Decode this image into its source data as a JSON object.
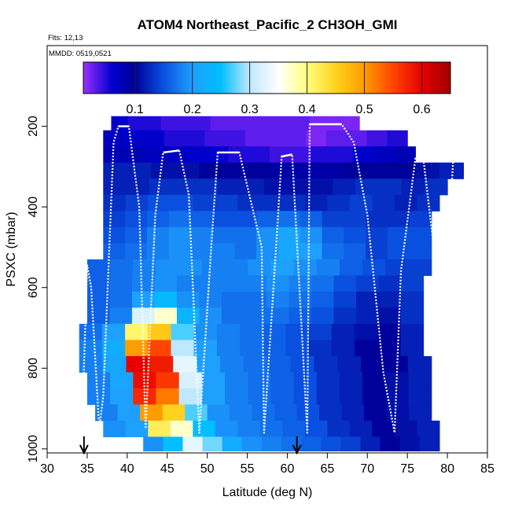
{
  "chart_data": {
    "type": "heatmap",
    "title": "ATOM4 Northeast_Pacific_2 CH3OH_GMI",
    "annotations": {
      "flights": "Flts: 12,13",
      "dates": "MMDD: 0519,0521"
    },
    "xlabel": "Latitude (deg N)",
    "ylabel": "PSXC (mbar)",
    "xlim": [
      30,
      85
    ],
    "ylim": [
      1010,
      0
    ],
    "y_inverted": true,
    "grid": false,
    "xticks": [
      30,
      35,
      40,
      45,
      50,
      55,
      60,
      65,
      70,
      75,
      80,
      85
    ],
    "yticks": [
      200,
      400,
      600,
      800,
      1000
    ],
    "colorbar": {
      "placement": "top-inside",
      "range": [
        0.01,
        0.65
      ],
      "ticks": [
        0.1,
        0.2,
        0.3,
        0.4,
        0.5,
        0.6
      ],
      "stops": [
        [
          0.01,
          "#9b30ff"
        ],
        [
          0.06,
          "#0000cd"
        ],
        [
          0.1,
          "#00009a"
        ],
        [
          0.15,
          "#0a50e0"
        ],
        [
          0.2,
          "#1ea0ff"
        ],
        [
          0.25,
          "#00bfff"
        ],
        [
          0.3,
          "#bfe8ff"
        ],
        [
          0.35,
          "#ffffff"
        ],
        [
          0.4,
          "#ffff80"
        ],
        [
          0.45,
          "#ffd21e"
        ],
        [
          0.5,
          "#ff9c00"
        ],
        [
          0.55,
          "#ff4500"
        ],
        [
          0.6,
          "#e60000"
        ],
        [
          0.65,
          "#a00000"
        ]
      ]
    },
    "pressure_bins": [
      {
        "p0": 175,
        "p1": 210,
        "lat": [
          38,
          69
        ],
        "values": [
          0.06,
          0.05,
          0.05,
          0.04,
          0.04,
          0.04,
          0.03,
          0.03,
          0.03,
          0.03,
          0.03,
          0.03,
          0.02,
          0.02,
          0.02
        ]
      },
      {
        "p0": 210,
        "p1": 250,
        "lat": [
          37,
          75
        ],
        "values": [
          0.07,
          0.06,
          0.06,
          0.05,
          0.05,
          0.04,
          0.04,
          0.03,
          0.03,
          0.03,
          0.02,
          0.03,
          0.03,
          0.04,
          0.05
        ]
      },
      {
        "p0": 250,
        "p1": 290,
        "lat": [
          37,
          76
        ],
        "values": [
          0.08,
          0.08,
          0.07,
          0.07,
          0.06,
          0.06,
          0.05,
          0.05,
          0.04,
          0.04,
          0.05,
          0.05,
          0.06,
          0.07,
          0.08
        ]
      },
      {
        "p0": 290,
        "p1": 330,
        "lat": [
          37,
          82
        ],
        "values": [
          0.12,
          0.12,
          0.11,
          0.11,
          0.1,
          0.1,
          0.1,
          0.09,
          0.09,
          0.09,
          0.1,
          0.1,
          0.1,
          0.11,
          0.12
        ]
      },
      {
        "p0": 330,
        "p1": 370,
        "lat": [
          37,
          80
        ],
        "values": [
          0.12,
          0.12,
          0.13,
          0.13,
          0.13,
          0.12,
          0.12,
          0.11,
          0.11,
          0.11,
          0.12,
          0.13,
          0.13,
          0.12,
          0.13
        ]
      },
      {
        "p0": 370,
        "p1": 410,
        "lat": [
          37,
          79
        ],
        "values": [
          0.13,
          0.14,
          0.15,
          0.15,
          0.14,
          0.14,
          0.13,
          0.13,
          0.13,
          0.12,
          0.13,
          0.14,
          0.13,
          0.12,
          0.13
        ]
      },
      {
        "p0": 410,
        "p1": 450,
        "lat": [
          37,
          78
        ],
        "values": [
          0.14,
          0.15,
          0.16,
          0.17,
          0.16,
          0.15,
          0.15,
          0.16,
          0.17,
          0.16,
          0.14,
          0.14,
          0.13,
          0.13,
          0.14
        ]
      },
      {
        "p0": 450,
        "p1": 490,
        "lat": [
          37,
          78
        ],
        "values": [
          0.15,
          0.16,
          0.18,
          0.19,
          0.18,
          0.17,
          0.17,
          0.19,
          0.21,
          0.19,
          0.16,
          0.15,
          0.14,
          0.15,
          0.15
        ]
      },
      {
        "p0": 490,
        "p1": 530,
        "lat": [
          37,
          78
        ],
        "values": [
          0.16,
          0.17,
          0.18,
          0.19,
          0.18,
          0.18,
          0.17,
          0.19,
          0.21,
          0.2,
          0.17,
          0.16,
          0.14,
          0.15,
          0.15
        ]
      },
      {
        "p0": 530,
        "p1": 570,
        "lat": [
          35,
          78
        ],
        "values": [
          0.16,
          0.17,
          0.18,
          0.19,
          0.19,
          0.18,
          0.18,
          0.19,
          0.2,
          0.19,
          0.18,
          0.16,
          0.15,
          0.14,
          0.14
        ]
      },
      {
        "p0": 570,
        "p1": 610,
        "lat": [
          35,
          77
        ],
        "values": [
          0.16,
          0.17,
          0.18,
          0.19,
          0.18,
          0.18,
          0.18,
          0.18,
          0.19,
          0.18,
          0.17,
          0.15,
          0.14,
          0.13,
          0.14
        ]
      },
      {
        "p0": 610,
        "p1": 650,
        "lat": [
          35,
          77
        ],
        "values": [
          0.16,
          0.17,
          0.2,
          0.24,
          0.19,
          0.18,
          0.17,
          0.17,
          0.18,
          0.17,
          0.16,
          0.14,
          0.12,
          0.12,
          0.13
        ]
      },
      {
        "p0": 650,
        "p1": 690,
        "lat": [
          35,
          77
        ],
        "values": [
          0.16,
          0.18,
          0.32,
          0.37,
          0.23,
          0.19,
          0.17,
          0.17,
          0.17,
          0.16,
          0.15,
          0.13,
          0.12,
          0.11,
          0.13
        ]
      },
      {
        "p0": 690,
        "p1": 730,
        "lat": [
          34,
          77
        ],
        "values": [
          0.17,
          0.2,
          0.41,
          0.46,
          0.27,
          0.19,
          0.18,
          0.17,
          0.16,
          0.15,
          0.14,
          0.12,
          0.11,
          0.1,
          0.12
        ]
      },
      {
        "p0": 730,
        "p1": 770,
        "lat": [
          34,
          77
        ],
        "values": [
          0.18,
          0.22,
          0.5,
          0.55,
          0.3,
          0.2,
          0.18,
          0.17,
          0.16,
          0.15,
          0.13,
          0.12,
          0.1,
          0.1,
          0.12
        ]
      },
      {
        "p0": 770,
        "p1": 810,
        "lat": [
          34,
          78
        ],
        "values": [
          0.18,
          0.21,
          0.6,
          0.58,
          0.33,
          0.2,
          0.18,
          0.17,
          0.16,
          0.15,
          0.13,
          0.12,
          0.1,
          0.1,
          0.12
        ]
      },
      {
        "p0": 810,
        "p1": 850,
        "lat": [
          35,
          78
        ],
        "values": [
          0.18,
          0.21,
          0.59,
          0.56,
          0.32,
          0.2,
          0.18,
          0.17,
          0.16,
          0.15,
          0.13,
          0.12,
          0.1,
          0.11,
          0.12
        ]
      },
      {
        "p0": 850,
        "p1": 890,
        "lat": [
          35,
          78
        ],
        "values": [
          0.18,
          0.2,
          0.57,
          0.52,
          0.3,
          0.2,
          0.18,
          0.17,
          0.16,
          0.15,
          0.13,
          0.12,
          0.1,
          0.11,
          0.12
        ]
      },
      {
        "p0": 890,
        "p1": 930,
        "lat": [
          36,
          78
        ],
        "values": [
          0.18,
          0.2,
          0.5,
          0.45,
          0.27,
          0.19,
          0.18,
          0.17,
          0.16,
          0.15,
          0.13,
          0.12,
          0.1,
          0.11,
          0.12
        ]
      },
      {
        "p0": 930,
        "p1": 970,
        "lat": [
          37,
          79
        ],
        "values": [
          0.19,
          0.2,
          0.42,
          0.37,
          0.25,
          0.19,
          0.18,
          0.17,
          0.16,
          0.15,
          0.13,
          0.12,
          0.1,
          0.11,
          0.12
        ]
      },
      {
        "p0": 970,
        "p1": 1005,
        "lat": [
          42,
          79
        ],
        "values": [
          0.19,
          0.25,
          0.33,
          0.28,
          0.22,
          0.19,
          0.18,
          0.17,
          0.16,
          0.15,
          0.14,
          0.12,
          0.1,
          0.11,
          0.12
        ]
      }
    ],
    "flight_track": [
      [
        34.5,
        860
      ],
      [
        35,
        545
      ],
      [
        35.5,
        600
      ],
      [
        36.5,
        950
      ],
      [
        37,
        870
      ],
      [
        38.3,
        240
      ],
      [
        38.9,
        200
      ],
      [
        40.2,
        200
      ],
      [
        41.5,
        400
      ],
      [
        42.3,
        950
      ],
      [
        43.5,
        420
      ],
      [
        44.5,
        265
      ],
      [
        46.5,
        260
      ],
      [
        47.7,
        370
      ],
      [
        49,
        960
      ],
      [
        50.5,
        500
      ],
      [
        51.3,
        265
      ],
      [
        54,
        265
      ],
      [
        56.8,
        500
      ],
      [
        57.1,
        960
      ],
      [
        58.6,
        500
      ],
      [
        59.3,
        275
      ],
      [
        60.6,
        270
      ],
      [
        62.5,
        960
      ],
      [
        62.8,
        195
      ],
      [
        66.8,
        195
      ],
      [
        68.3,
        240
      ],
      [
        70,
        420
      ],
      [
        72,
        810
      ],
      [
        73.4,
        960
      ],
      [
        74.2,
        560
      ],
      [
        76,
        280
      ],
      [
        77,
        280
      ],
      [
        78.3,
        500
      ],
      [
        79.4,
        960
      ],
      [
        80,
        560
      ],
      [
        80.7,
        290
      ],
      [
        81.3,
        275
      ]
    ],
    "markers": [
      {
        "lat": 34.6,
        "direction": "down"
      },
      {
        "lat": 61.2,
        "direction": "down"
      }
    ]
  }
}
